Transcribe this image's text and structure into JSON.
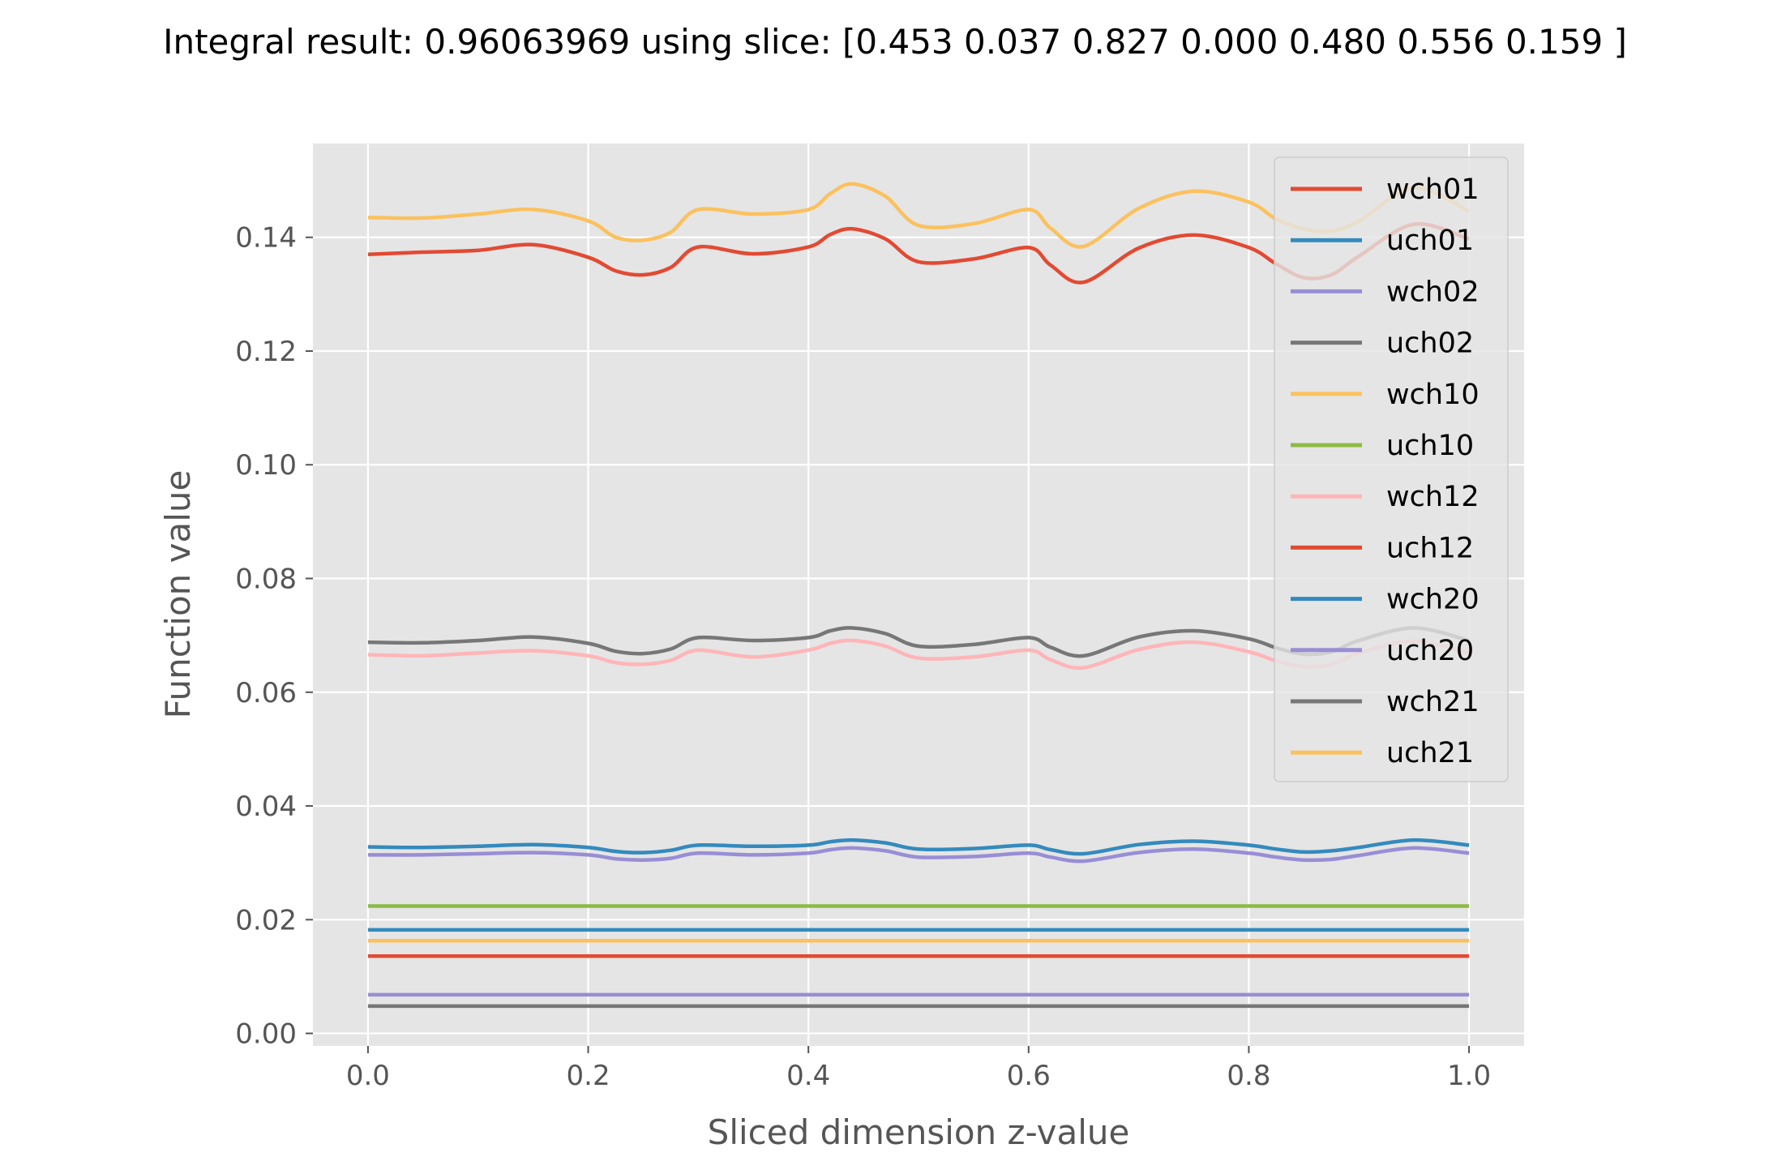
{
  "chart_data": {
    "type": "line",
    "title": "Integral result: 0.96063969 using slice: [0.453 0.037 0.827 0.000 0.480 0.556 0.159 ]",
    "xlabel": "Sliced dimension z-value",
    "ylabel": "Function value",
    "xlim": [
      -0.05,
      1.05
    ],
    "ylim": [
      -0.0022,
      0.1565
    ],
    "x_ticks": [
      "0.0",
      "0.2",
      "0.4",
      "0.6",
      "0.8",
      "1.0"
    ],
    "y_ticks": [
      "0.00",
      "0.02",
      "0.04",
      "0.06",
      "0.08",
      "0.10",
      "0.12",
      "0.14"
    ],
    "grid": true,
    "legend_position": "upper-right",
    "background": "#e5e5e5",
    "x": [
      0.0,
      0.05,
      0.1,
      0.15,
      0.2,
      0.225,
      0.25,
      0.275,
      0.3,
      0.35,
      0.4,
      0.42,
      0.44,
      0.47,
      0.5,
      0.55,
      0.6,
      0.62,
      0.65,
      0.7,
      0.75,
      0.8,
      0.825,
      0.85,
      0.875,
      0.9,
      0.95,
      1.0
    ],
    "series": [
      {
        "name": "wch01",
        "color": "#e24a33",
        "values": [
          0.137,
          0.1374,
          0.1377,
          0.1387,
          0.1365,
          0.1341,
          0.1334,
          0.1347,
          0.1383,
          0.1371,
          0.1383,
          0.1405,
          0.1415,
          0.1397,
          0.1357,
          0.1362,
          0.1382,
          0.1351,
          0.1321,
          0.1381,
          0.1404,
          0.1382,
          0.1353,
          0.1329,
          0.1334,
          0.1367,
          0.1423,
          0.1397
        ]
      },
      {
        "name": "uch01",
        "color": "#348abd",
        "values": [
          0.0328,
          0.0327,
          0.0329,
          0.0332,
          0.0327,
          0.032,
          0.0318,
          0.0322,
          0.0331,
          0.0329,
          0.0331,
          0.0337,
          0.034,
          0.0335,
          0.0324,
          0.0325,
          0.0331,
          0.0323,
          0.0316,
          0.0332,
          0.0338,
          0.0331,
          0.0324,
          0.0319,
          0.0321,
          0.0327,
          0.034,
          0.0331
        ]
      },
      {
        "name": "wch02",
        "color": "#988ed5",
        "values": [
          0.0314,
          0.0314,
          0.0316,
          0.0318,
          0.0314,
          0.0307,
          0.0305,
          0.0308,
          0.0317,
          0.0314,
          0.0317,
          0.0323,
          0.0326,
          0.0321,
          0.031,
          0.0311,
          0.0317,
          0.031,
          0.0303,
          0.0318,
          0.0324,
          0.0317,
          0.031,
          0.0305,
          0.0306,
          0.0313,
          0.0326,
          0.0317
        ]
      },
      {
        "name": "uch02",
        "color": "#777777",
        "values": [
          0.0688,
          0.0687,
          0.0691,
          0.0697,
          0.0686,
          0.0672,
          0.0668,
          0.0676,
          0.0696,
          0.0691,
          0.0696,
          0.0708,
          0.0713,
          0.0703,
          0.0681,
          0.0684,
          0.0696,
          0.0679,
          0.0664,
          0.0697,
          0.0708,
          0.0694,
          0.0678,
          0.0667,
          0.0671,
          0.0691,
          0.0713,
          0.0691
        ]
      },
      {
        "name": "wch10",
        "color": "#fbc15e",
        "values": [
          0.1435,
          0.1434,
          0.1441,
          0.1449,
          0.1429,
          0.14,
          0.1395,
          0.1409,
          0.1449,
          0.1441,
          0.1449,
          0.1477,
          0.1494,
          0.1472,
          0.1421,
          0.1424,
          0.1449,
          0.1416,
          0.1384,
          0.1451,
          0.1481,
          0.1462,
          0.1432,
          0.1415,
          0.1411,
          0.1429,
          0.1487,
          0.1446
        ]
      },
      {
        "name": "uch10",
        "color": "#8eba42",
        "values": [
          0.0224,
          0.0224,
          0.0224,
          0.0224,
          0.0224,
          0.0224,
          0.0224,
          0.0224,
          0.0224,
          0.0224,
          0.0224,
          0.0224,
          0.0224,
          0.0224,
          0.0224,
          0.0224,
          0.0224,
          0.0224,
          0.0224,
          0.0224,
          0.0224,
          0.0224,
          0.0224,
          0.0224,
          0.0224,
          0.0224,
          0.0224,
          0.0224
        ]
      },
      {
        "name": "wch12",
        "color": "#ffb5b8",
        "values": [
          0.0666,
          0.0664,
          0.0669,
          0.0673,
          0.0664,
          0.0652,
          0.0649,
          0.0656,
          0.0674,
          0.0662,
          0.0674,
          0.0686,
          0.0691,
          0.0681,
          0.066,
          0.0662,
          0.0674,
          0.0657,
          0.0643,
          0.0675,
          0.0688,
          0.0671,
          0.0655,
          0.0645,
          0.0649,
          0.0669,
          0.069,
          0.0669
        ]
      },
      {
        "name": "uch12",
        "color": "#e24a33",
        "values": [
          0.0136,
          0.0136,
          0.0136,
          0.0136,
          0.0136,
          0.0136,
          0.0136,
          0.0136,
          0.0136,
          0.0136,
          0.0136,
          0.0136,
          0.0136,
          0.0136,
          0.0136,
          0.0136,
          0.0136,
          0.0136,
          0.0136,
          0.0136,
          0.0136,
          0.0136,
          0.0136,
          0.0136,
          0.0136,
          0.0136,
          0.0136,
          0.0136
        ]
      },
      {
        "name": "wch20",
        "color": "#348abd",
        "values": [
          0.0182,
          0.0182,
          0.0182,
          0.0182,
          0.0182,
          0.0182,
          0.0182,
          0.0182,
          0.0182,
          0.0182,
          0.0182,
          0.0182,
          0.0182,
          0.0182,
          0.0182,
          0.0182,
          0.0182,
          0.0182,
          0.0182,
          0.0182,
          0.0182,
          0.0182,
          0.0182,
          0.0182,
          0.0182,
          0.0182,
          0.0182,
          0.0182
        ]
      },
      {
        "name": "uch20",
        "color": "#988ed5",
        "values": [
          0.0068,
          0.0068,
          0.0068,
          0.0068,
          0.0068,
          0.0068,
          0.0068,
          0.0068,
          0.0068,
          0.0068,
          0.0068,
          0.0068,
          0.0068,
          0.0068,
          0.0068,
          0.0068,
          0.0068,
          0.0068,
          0.0068,
          0.0068,
          0.0068,
          0.0068,
          0.0068,
          0.0068,
          0.0068,
          0.0068,
          0.0068,
          0.0068
        ]
      },
      {
        "name": "wch21",
        "color": "#777777",
        "values": [
          0.0048,
          0.0048,
          0.0048,
          0.0048,
          0.0048,
          0.0048,
          0.0048,
          0.0048,
          0.0048,
          0.0048,
          0.0048,
          0.0048,
          0.0048,
          0.0048,
          0.0048,
          0.0048,
          0.0048,
          0.0048,
          0.0048,
          0.0048,
          0.0048,
          0.0048,
          0.0048,
          0.0048,
          0.0048,
          0.0048,
          0.0048,
          0.0048
        ]
      },
      {
        "name": "uch21",
        "color": "#fbc15e",
        "values": [
          0.0163,
          0.0163,
          0.0163,
          0.0163,
          0.0163,
          0.0163,
          0.0163,
          0.0163,
          0.0163,
          0.0163,
          0.0163,
          0.0163,
          0.0163,
          0.0163,
          0.0163,
          0.0163,
          0.0163,
          0.0163,
          0.0163,
          0.0163,
          0.0163,
          0.0163,
          0.0163,
          0.0163,
          0.0163,
          0.0163,
          0.0163,
          0.0163
        ]
      }
    ]
  }
}
